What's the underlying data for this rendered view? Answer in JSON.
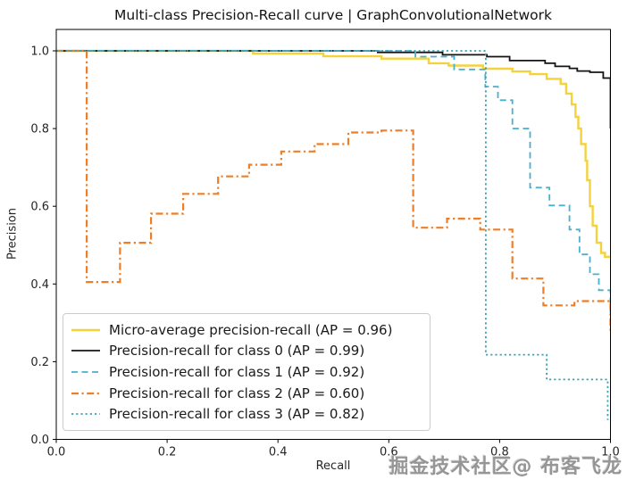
{
  "title": "Multi-class Precision-Recall curve | GraphConvolutionalNetwork",
  "watermark": "掘金技术社区@ 布客飞龙",
  "chart_data": {
    "type": "line",
    "title": "Multi-class Precision-Recall curve | GraphConvolutionalNetwork",
    "xlabel": "Recall",
    "ylabel": "Precision",
    "xlim": [
      0.0,
      1.0
    ],
    "ylim": [
      0.0,
      1.055
    ],
    "x_ticks": [
      "0.0",
      "0.2",
      "0.4",
      "0.6",
      "0.8",
      "1.0"
    ],
    "y_ticks": [
      "0.0",
      "0.2",
      "0.4",
      "0.6",
      "0.8",
      "1.0"
    ],
    "grid": false,
    "legend_position": "lower left",
    "series": [
      {
        "name": "Micro-average precision-recall (AP = 0.96)",
        "ap": 0.96,
        "color": "#f3d23d",
        "style": "solid",
        "width": 2.4,
        "points": [
          [
            0,
            1.0
          ],
          [
            0.355,
            1.0
          ],
          [
            0.355,
            0.993
          ],
          [
            0.482,
            0.993
          ],
          [
            0.482,
            0.986
          ],
          [
            0.587,
            0.986
          ],
          [
            0.587,
            0.98
          ],
          [
            0.672,
            0.98
          ],
          [
            0.672,
            0.968
          ],
          [
            0.708,
            0.968
          ],
          [
            0.708,
            0.962
          ],
          [
            0.77,
            0.962
          ],
          [
            0.77,
            0.954
          ],
          [
            0.823,
            0.954
          ],
          [
            0.823,
            0.947
          ],
          [
            0.855,
            0.947
          ],
          [
            0.855,
            0.94
          ],
          [
            0.885,
            0.94
          ],
          [
            0.885,
            0.928
          ],
          [
            0.91,
            0.928
          ],
          [
            0.91,
            0.915
          ],
          [
            0.92,
            0.915
          ],
          [
            0.92,
            0.89
          ],
          [
            0.93,
            0.89
          ],
          [
            0.93,
            0.862
          ],
          [
            0.937,
            0.862
          ],
          [
            0.937,
            0.83
          ],
          [
            0.942,
            0.83
          ],
          [
            0.942,
            0.8
          ],
          [
            0.947,
            0.8
          ],
          [
            0.947,
            0.76
          ],
          [
            0.955,
            0.76
          ],
          [
            0.955,
            0.717
          ],
          [
            0.958,
            0.717
          ],
          [
            0.958,
            0.667
          ],
          [
            0.963,
            0.667
          ],
          [
            0.963,
            0.6
          ],
          [
            0.968,
            0.6
          ],
          [
            0.968,
            0.55
          ],
          [
            0.975,
            0.55
          ],
          [
            0.975,
            0.506
          ],
          [
            0.983,
            0.506
          ],
          [
            0.983,
            0.48
          ],
          [
            0.99,
            0.48
          ],
          [
            0.99,
            0.47
          ],
          [
            1.0,
            0.47
          ]
        ]
      },
      {
        "name": "Precision-recall for class 0 (AP = 0.99)",
        "ap": 0.99,
        "color": "#141414",
        "style": "solid",
        "width": 1.8,
        "points": [
          [
            0,
            1.0
          ],
          [
            0.58,
            1.0
          ],
          [
            0.58,
            0.996
          ],
          [
            0.697,
            0.996
          ],
          [
            0.697,
            0.99
          ],
          [
            0.777,
            0.99
          ],
          [
            0.777,
            0.985
          ],
          [
            0.818,
            0.985
          ],
          [
            0.818,
            0.975
          ],
          [
            0.882,
            0.975
          ],
          [
            0.882,
            0.968
          ],
          [
            0.9,
            0.968
          ],
          [
            0.9,
            0.96
          ],
          [
            0.926,
            0.96
          ],
          [
            0.926,
            0.955
          ],
          [
            0.94,
            0.955
          ],
          [
            0.94,
            0.948
          ],
          [
            0.963,
            0.948
          ],
          [
            0.963,
            0.945
          ],
          [
            0.987,
            0.945
          ],
          [
            0.987,
            0.93
          ],
          [
            1.0,
            0.93
          ],
          [
            1.0,
            0.8
          ]
        ]
      },
      {
        "name": "Precision-recall for class 1 (AP = 0.92)",
        "ap": 0.92,
        "color": "#4bafcd",
        "style": "dashed",
        "width": 1.8,
        "points": [
          [
            0,
            1.0
          ],
          [
            0.648,
            1.0
          ],
          [
            0.648,
            0.985
          ],
          [
            0.718,
            0.985
          ],
          [
            0.718,
            0.952
          ],
          [
            0.774,
            0.952
          ],
          [
            0.774,
            0.908
          ],
          [
            0.797,
            0.908
          ],
          [
            0.797,
            0.873
          ],
          [
            0.823,
            0.873
          ],
          [
            0.823,
            0.8
          ],
          [
            0.855,
            0.8
          ],
          [
            0.855,
            0.648
          ],
          [
            0.89,
            0.648
          ],
          [
            0.89,
            0.602
          ],
          [
            0.926,
            0.602
          ],
          [
            0.926,
            0.54
          ],
          [
            0.944,
            0.54
          ],
          [
            0.944,
            0.476
          ],
          [
            0.963,
            0.476
          ],
          [
            0.963,
            0.425
          ],
          [
            0.979,
            0.425
          ],
          [
            0.979,
            0.384
          ],
          [
            1.0,
            0.384
          ],
          [
            1.0,
            0.326
          ]
        ]
      },
      {
        "name": "Precision-recall for class 2 (AP = 0.60)",
        "ap": 0.6,
        "color": "#ee7e28",
        "style": "dashdot",
        "width": 2.2,
        "points": [
          [
            0,
            1.0
          ],
          [
            0.055,
            1.0
          ],
          [
            0.055,
            0.405
          ],
          [
            0.115,
            0.405
          ],
          [
            0.115,
            0.506
          ],
          [
            0.171,
            0.506
          ],
          [
            0.171,
            0.581
          ],
          [
            0.229,
            0.581
          ],
          [
            0.229,
            0.632
          ],
          [
            0.292,
            0.632
          ],
          [
            0.292,
            0.677
          ],
          [
            0.348,
            0.677
          ],
          [
            0.348,
            0.707
          ],
          [
            0.406,
            0.707
          ],
          [
            0.406,
            0.741
          ],
          [
            0.466,
            0.741
          ],
          [
            0.466,
            0.76
          ],
          [
            0.527,
            0.76
          ],
          [
            0.527,
            0.79
          ],
          [
            0.587,
            0.79
          ],
          [
            0.587,
            0.795
          ],
          [
            0.644,
            0.795
          ],
          [
            0.644,
            0.545
          ],
          [
            0.705,
            0.545
          ],
          [
            0.705,
            0.568
          ],
          [
            0.765,
            0.568
          ],
          [
            0.765,
            0.54
          ],
          [
            0.823,
            0.54
          ],
          [
            0.823,
            0.414
          ],
          [
            0.879,
            0.414
          ],
          [
            0.879,
            0.345
          ],
          [
            0.935,
            0.345
          ],
          [
            0.935,
            0.356
          ],
          [
            1.0,
            0.356
          ],
          [
            1.0,
            0.28
          ]
        ]
      },
      {
        "name": "Precision-recall for class 3 (AP = 0.82)",
        "ap": 0.82,
        "color": "#3ba3b5",
        "style": "dotted",
        "width": 1.8,
        "points": [
          [
            0,
            1.0
          ],
          [
            0.775,
            1.0
          ],
          [
            0.775,
            0.218
          ],
          [
            0.885,
            0.218
          ],
          [
            0.885,
            0.154
          ],
          [
            0.995,
            0.154
          ],
          [
            0.995,
            0.05
          ]
        ]
      }
    ]
  }
}
